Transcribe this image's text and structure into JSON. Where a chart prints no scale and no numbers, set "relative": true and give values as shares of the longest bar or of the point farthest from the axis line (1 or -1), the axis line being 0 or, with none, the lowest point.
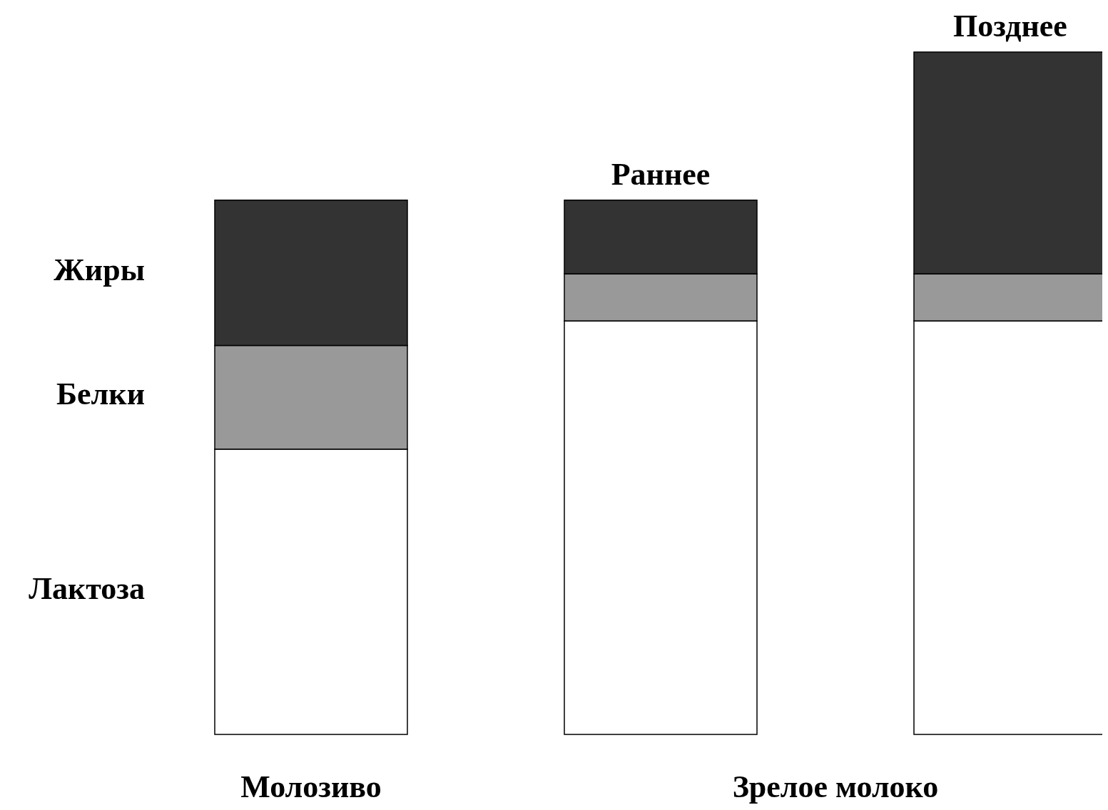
{
  "chart_data": {
    "type": "bar",
    "stacked": true,
    "relative": true,
    "categories": [
      "Молозиво",
      "Раннее",
      "Позднее"
    ],
    "series": [
      {
        "name": "Лактоза",
        "color": "#ffffff",
        "values": [
          0.418,
          0.606,
          0.606
        ]
      },
      {
        "name": "Белки",
        "color": "#999999",
        "values": [
          0.152,
          0.069,
          0.069
        ]
      },
      {
        "name": "Жиры",
        "color": "#333333",
        "values": [
          0.213,
          0.108,
          0.325
        ]
      }
    ],
    "annotations": [
      "Зрелое молоко"
    ]
  }
}
